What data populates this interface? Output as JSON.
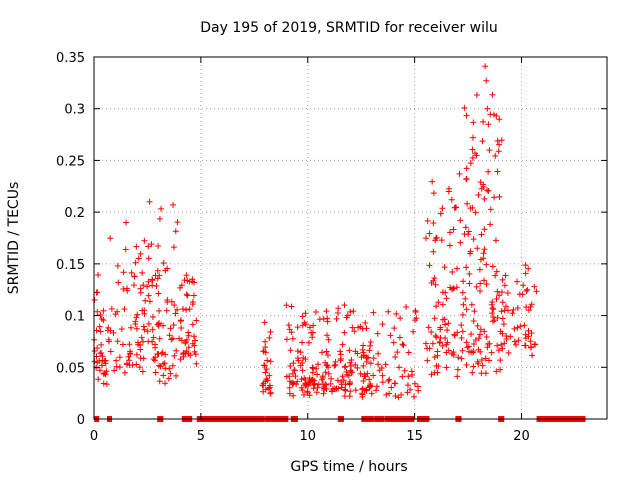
{
  "chart_data": {
    "type": "scatter",
    "title": "Day 195 of 2019, SRMTID for receiver wilu",
    "xlabel": "GPS time / hours",
    "ylabel": "SRMTID / TECUs",
    "xlim": [
      0,
      24
    ],
    "ylim": [
      0,
      0.35
    ],
    "x_ticks": [
      "0",
      "5",
      "10",
      "15",
      "20"
    ],
    "x_tick_values": [
      0,
      5,
      10,
      15,
      20
    ],
    "y_ticks": [
      "0",
      "0.05",
      "0.1",
      "0.15",
      "0.2",
      "0.25",
      "0.3",
      "0.35"
    ],
    "y_tick_values": [
      0,
      0.05,
      0.1,
      0.15,
      0.2,
      0.25,
      0.3,
      0.35
    ],
    "grid": true,
    "marker": "+",
    "series_color": "#ff0000",
    "series": [
      {
        "name": "SRMTID",
        "description_clusters": [
          {
            "x_range": [
              0.0,
              0.7
            ],
            "y_range": [
              0.03,
              0.15
            ]
          },
          {
            "x_range": [
              0.7,
              2.8
            ],
            "y_range": [
              0.04,
              0.19
            ]
          },
          {
            "x_range": [
              2.8,
              4.0
            ],
            "y_range": [
              0.03,
              0.21
            ]
          },
          {
            "x_range": [
              4.0,
              4.8
            ],
            "y_range": [
              0.05,
              0.15
            ]
          },
          {
            "x_range": [
              7.8,
              8.3
            ],
            "y_range": [
              0.02,
              0.095
            ]
          },
          {
            "x_range": [
              9.0,
              13.0
            ],
            "y_range": [
              0.02,
              0.115
            ]
          },
          {
            "x_range": [
              13.0,
              15.2
            ],
            "y_range": [
              0.02,
              0.12
            ]
          },
          {
            "x_range": [
              15.5,
              17.3
            ],
            "y_range": [
              0.04,
              0.24
            ]
          },
          {
            "x_range": [
              17.3,
              19.1
            ],
            "y_range": [
              0.04,
              0.34
            ]
          },
          {
            "x_range": [
              19.1,
              20.7
            ],
            "y_range": [
              0.06,
              0.16
            ]
          }
        ],
        "peak_points": [
          {
            "x": 18.3,
            "y": 0.341
          },
          {
            "x": 18.35,
            "y": 0.327
          },
          {
            "x": 18.4,
            "y": 0.3
          },
          {
            "x": 18.45,
            "y": 0.285
          },
          {
            "x": 18.5,
            "y": 0.26
          },
          {
            "x": 17.1,
            "y": 0.237
          },
          {
            "x": 16.6,
            "y": 0.22
          },
          {
            "x": 2.6,
            "y": 0.21
          },
          {
            "x": 3.7,
            "y": 0.207
          },
          {
            "x": 1.5,
            "y": 0.19
          },
          {
            "x": 9.0,
            "y": 0.11
          }
        ]
      },
      {
        "name": "zero values",
        "y": 0,
        "x_segments": [
          [
            0.1,
            0.15
          ],
          [
            0.7,
            0.75
          ],
          [
            3.05,
            3.15
          ],
          [
            4.2,
            4.5
          ],
          [
            4.9,
            7.9
          ],
          [
            8.1,
            9.0
          ],
          [
            9.3,
            9.45
          ],
          [
            11.5,
            11.6
          ],
          [
            12.6,
            13.0
          ],
          [
            13.2,
            13.5
          ],
          [
            13.7,
            14.1
          ],
          [
            14.2,
            14.9
          ],
          [
            15.2,
            15.6
          ],
          [
            17.0,
            17.1
          ],
          [
            19.0,
            19.1
          ],
          [
            20.8,
            22.9
          ]
        ]
      }
    ]
  }
}
